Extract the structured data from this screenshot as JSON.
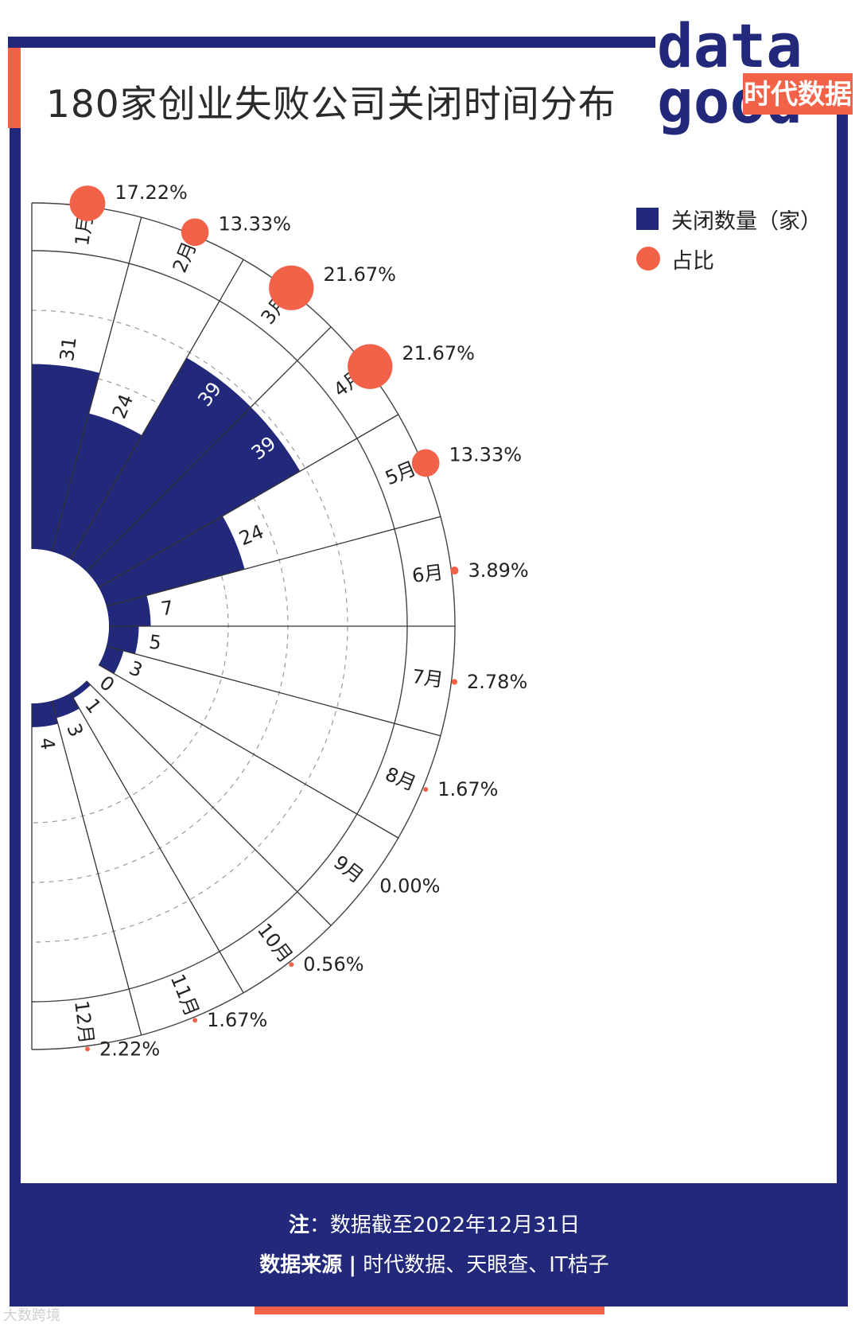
{
  "title": "180家创业失败公司关闭时间分布",
  "logo": {
    "top": "data",
    "bottom": "good",
    "brand": "时代数据"
  },
  "legend": {
    "count_label": "关闭数量（家）",
    "share_label": "占比"
  },
  "colors": {
    "bar": "#22297a",
    "dot": "#f26248",
    "frame": "#22297a",
    "accent": "#f26248"
  },
  "chart_data": {
    "type": "bar",
    "layout": "polar-half",
    "title": "180家创业失败公司关闭时间分布",
    "categories": [
      "1月",
      "2月",
      "3月",
      "4月",
      "5月",
      "6月",
      "7月",
      "8月",
      "9月",
      "10月",
      "11月",
      "12月"
    ],
    "series": [
      {
        "name": "关闭数量（家）",
        "values": [
          31,
          24,
          39,
          39,
          24,
          7,
          5,
          3,
          0,
          1,
          3,
          4
        ]
      },
      {
        "name": "占比",
        "values": [
          17.22,
          13.33,
          21.67,
          21.67,
          13.33,
          3.89,
          2.78,
          1.67,
          0.0,
          0.56,
          1.67,
          2.22
        ],
        "labels": [
          "17.22%",
          "13.33%",
          "21.67%",
          "21.67%",
          "13.33%",
          "3.89%",
          "2.78%",
          "1.67%",
          "0.00%",
          "0.56%",
          "1.67%",
          "2.22%"
        ]
      }
    ],
    "count_labels": [
      "31",
      "24",
      "39",
      "39",
      "24",
      "7",
      "5",
      "3",
      "0",
      "1",
      "3",
      "4"
    ],
    "rmax": 50,
    "legend": "top-right"
  },
  "footer": {
    "note_label": "注",
    "note_text": "：数据截至2022年12月31日",
    "source_label": "数据来源",
    "source_sep": "|",
    "source_text": "时代数据、天眼查、IT桔子"
  },
  "watermark": "大数跨境"
}
